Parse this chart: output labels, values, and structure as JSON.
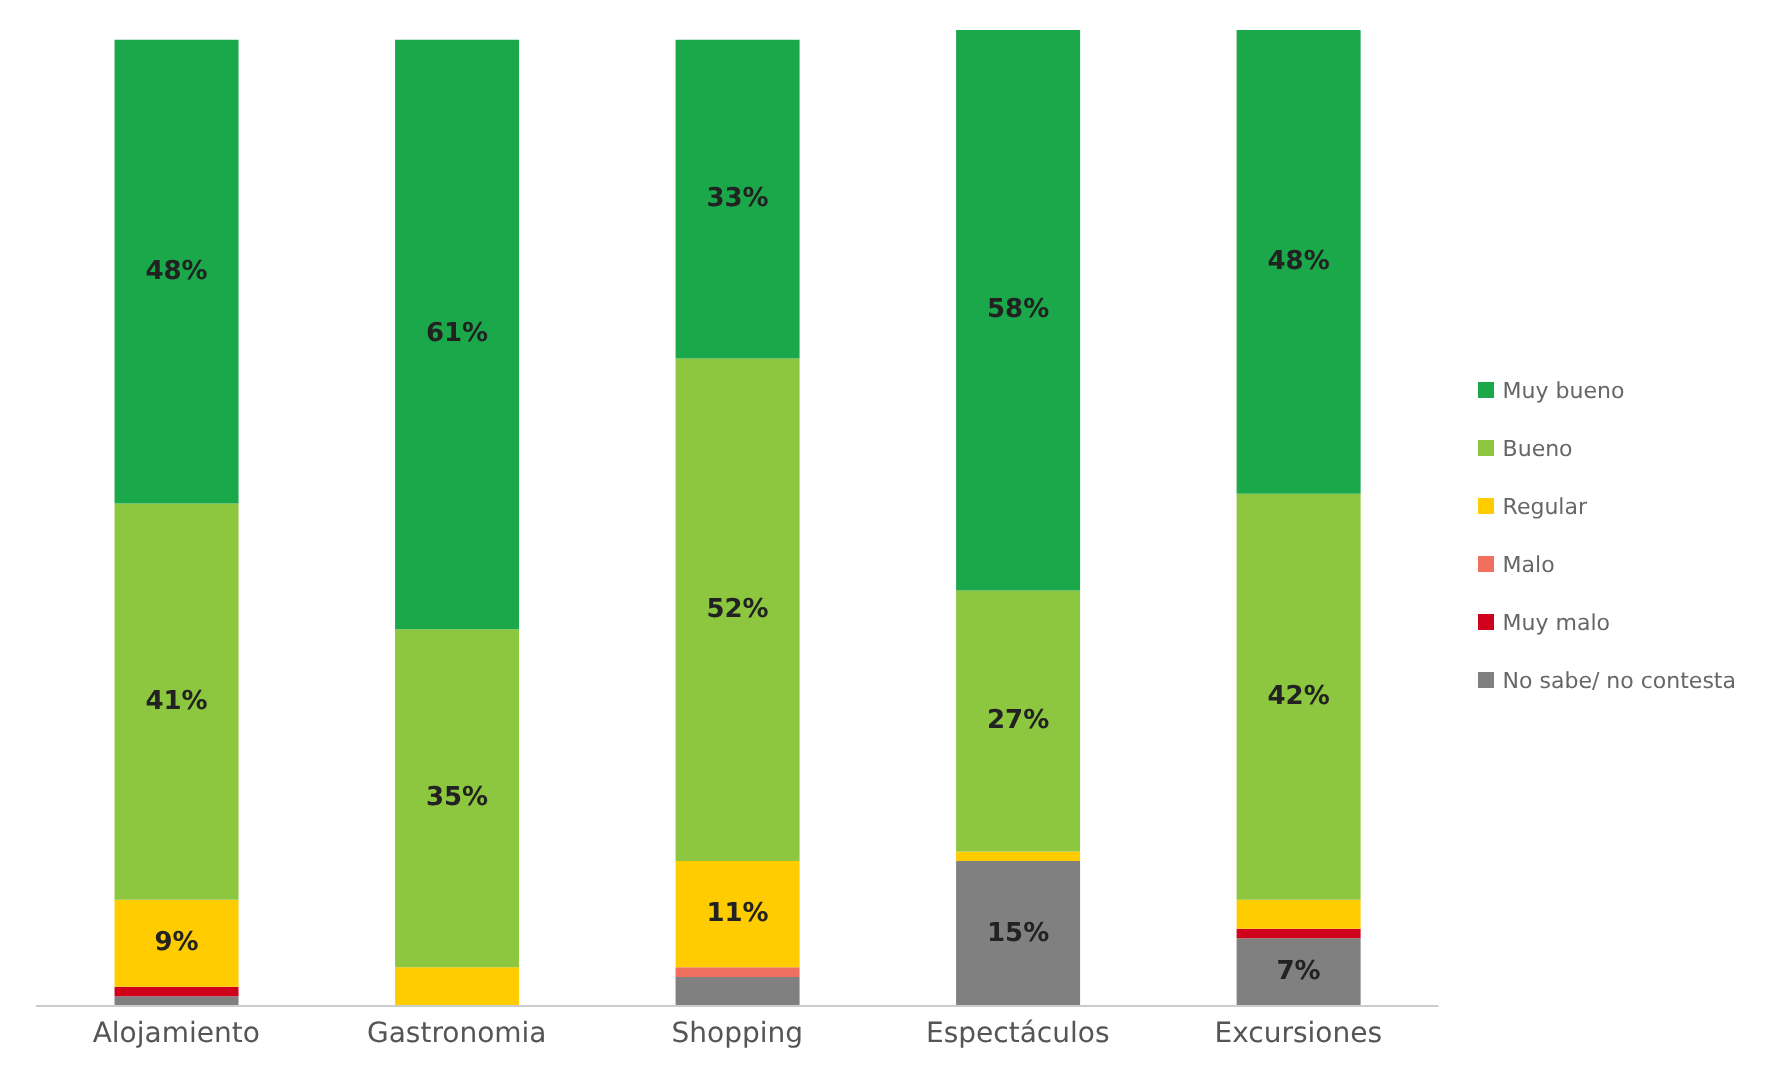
{
  "chart_data": {
    "type": "bar",
    "stacked": true,
    "legend": "right",
    "categories": [
      "Alojamiento",
      "Gastronomia",
      "Shopping",
      "Espectáculos",
      "Excursiones"
    ],
    "series": [
      {
        "name": "No sabe/ no contesta",
        "color": "#808080",
        "values": [
          1,
          0,
          3,
          15,
          7
        ],
        "value_labels": [
          null,
          null,
          null,
          "15%",
          "7%"
        ]
      },
      {
        "name": "Muy malo",
        "color": "#d0021b",
        "values": [
          1,
          0,
          0,
          0,
          1
        ],
        "value_labels": [
          null,
          null,
          null,
          null,
          null
        ]
      },
      {
        "name": "Malo",
        "color": "#f07060",
        "values": [
          0,
          0,
          1,
          0,
          0
        ],
        "value_labels": [
          null,
          null,
          null,
          null,
          null
        ]
      },
      {
        "name": "Regular",
        "color": "#ffcc00",
        "values": [
          9,
          4,
          11,
          1,
          3
        ],
        "value_labels": [
          "9%",
          null,
          "11%",
          null,
          null
        ]
      },
      {
        "name": "Bueno",
        "color": "#8dc63f",
        "values": [
          41,
          35,
          52,
          27,
          42
        ],
        "value_labels": [
          "41%",
          "35%",
          "52%",
          "27%",
          "42%"
        ]
      },
      {
        "name": "Muy bueno",
        "color": "#1aa84a",
        "values": [
          48,
          61,
          33,
          58,
          48
        ],
        "value_labels": [
          "48%",
          "61%",
          "33%",
          "58%",
          "48%"
        ]
      }
    ]
  }
}
